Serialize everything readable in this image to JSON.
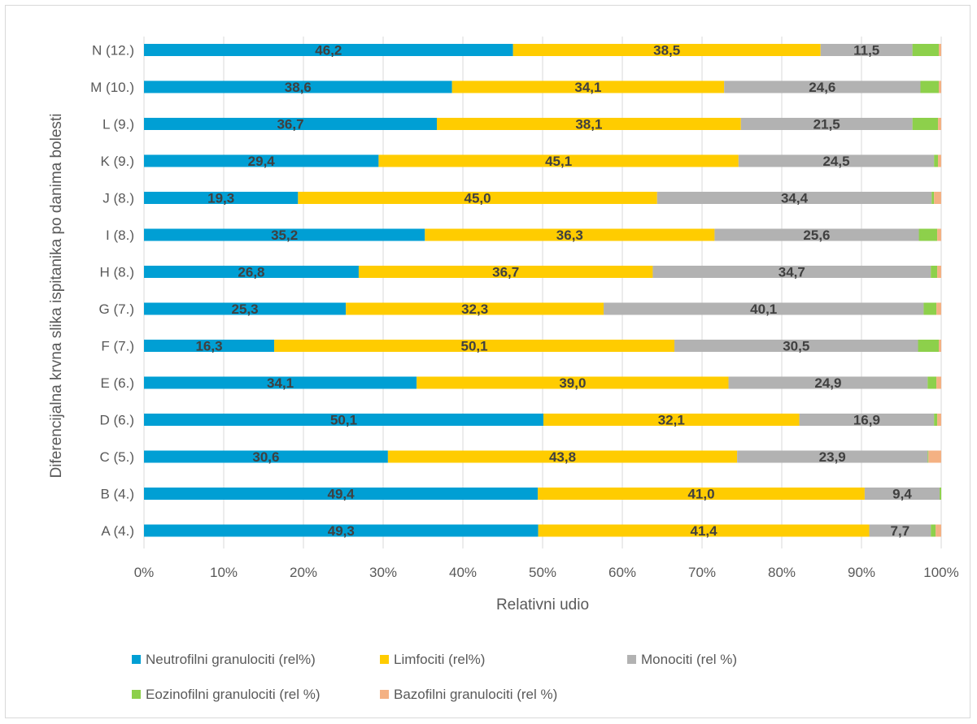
{
  "chart_data": {
    "type": "bar",
    "orientation": "horizontal",
    "stacking": "percent",
    "title": "",
    "xlabel": "Relativni udio",
    "ylabel": "Diferencijalna krvna slika ispitanika po danima bolesti",
    "xlim": [
      0,
      100
    ],
    "x_ticks": [
      "0%",
      "10%",
      "20%",
      "30%",
      "40%",
      "50%",
      "60%",
      "70%",
      "80%",
      "90%",
      "100%"
    ],
    "grid": "vertical",
    "legend_position": "bottom",
    "categories": [
      "A (4.)",
      "B (4.)",
      "C (5.)",
      "D (6.)",
      "E (6.)",
      "F (7.)",
      "G (7.)",
      "H (8.)",
      "I (8.)",
      "J (8.)",
      "K (9.)",
      "L (9.)",
      "M (10.)",
      "N (12.)"
    ],
    "series": [
      {
        "name": "Neutrofilni granulociti (rel%)",
        "color": "#009fd4",
        "values": [
          49.3,
          49.4,
          30.6,
          50.1,
          34.1,
          16.3,
          25.3,
          26.8,
          35.2,
          19.3,
          29.4,
          36.7,
          38.6,
          46.2
        ],
        "labels": [
          "49,3",
          "49,4",
          "30,6",
          "50,1",
          "34,1",
          "16,3",
          "25,3",
          "26,8",
          "35,2",
          "19,3",
          "29,4",
          "36,7",
          "38,6",
          "46,2"
        ]
      },
      {
        "name": "Limfociti (rel%)",
        "color": "#ffcc00",
        "values": [
          41.4,
          41.0,
          43.8,
          32.1,
          39.0,
          50.1,
          32.3,
          36.7,
          36.3,
          45.0,
          45.1,
          38.1,
          34.1,
          38.5
        ],
        "labels": [
          "41,4",
          "41,0",
          "43,8",
          "32,1",
          "39,0",
          "50,1",
          "32,3",
          "36,7",
          "36,3",
          "45,0",
          "45,1",
          "38,1",
          "34,1",
          "38,5"
        ]
      },
      {
        "name": "Monociti (rel %)",
        "color": "#b2b2b2",
        "values": [
          7.7,
          9.4,
          23.9,
          16.9,
          24.9,
          30.5,
          40.1,
          34.7,
          25.6,
          34.4,
          24.5,
          21.5,
          24.6,
          11.5
        ],
        "labels": [
          "7,7",
          "9,4",
          "23,9",
          "16,9",
          "24,9",
          "30,5",
          "40,1",
          "34,7",
          "25,6",
          "34,4",
          "24,5",
          "21,5",
          "24,6",
          "11,5"
        ]
      },
      {
        "name": "Eozinofilni granulociti (rel %)",
        "color": "#8dd04b",
        "values": [
          0.6,
          0.2,
          0.1,
          0.4,
          1.1,
          2.6,
          1.6,
          0.8,
          2.3,
          0.3,
          0.5,
          3.2,
          2.3,
          3.3
        ],
        "labels": null
      },
      {
        "name": "Bazofilni granulociti (rel %)",
        "color": "#f4b183",
        "values": [
          0.7,
          0.0,
          1.6,
          0.5,
          0.6,
          0.3,
          0.6,
          0.5,
          0.5,
          0.9,
          0.4,
          0.4,
          0.3,
          0.3
        ],
        "labels": null
      }
    ]
  }
}
